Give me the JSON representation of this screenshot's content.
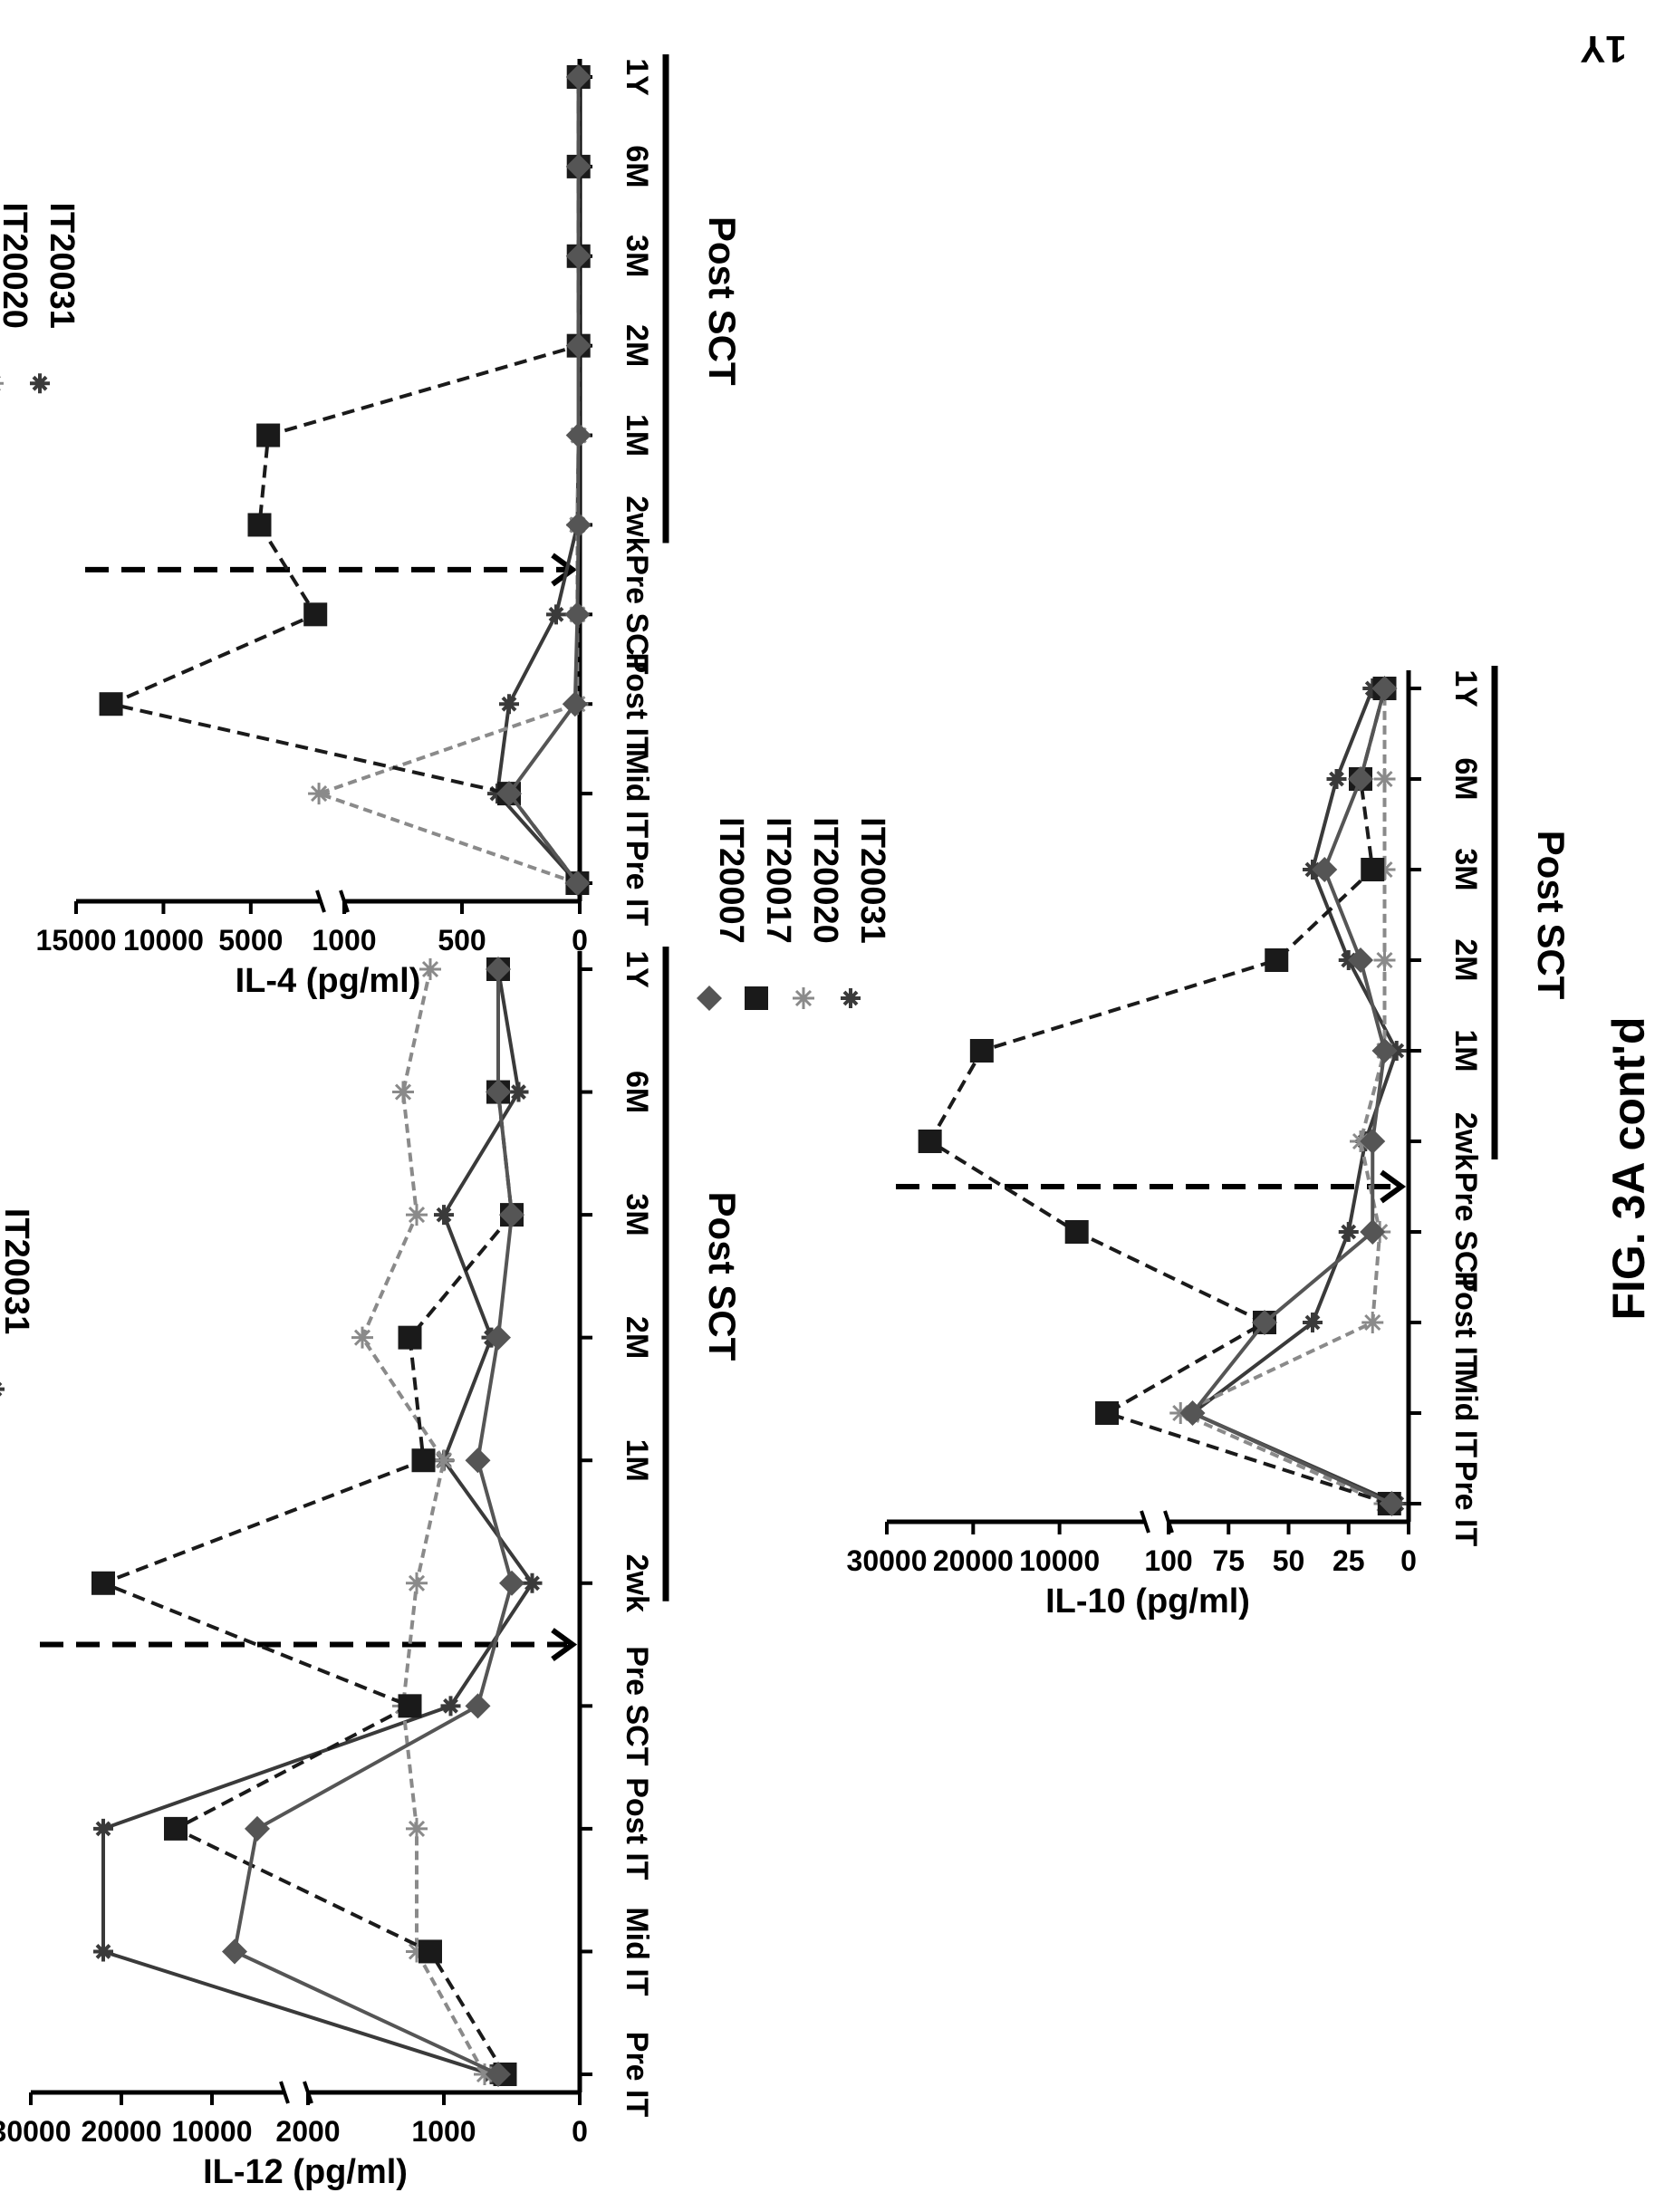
{
  "figure_caption": "FIG. 3A cont'd",
  "stray_label": "1Y",
  "colors": {
    "axis": "#000000",
    "IT20031": "#3a3a3a",
    "IT20020": "#8a8a8a",
    "IT20017": "#1a1a1a",
    "IT20007": "#555555"
  },
  "chart_data": [
    {
      "type": "line",
      "ylabel": "IL-12 (pg/ml)",
      "x_group_label": "Post SCT",
      "categories": [
        "Pre IT",
        "Mid IT",
        "Post IT",
        "Pre SCT",
        "2wk",
        "1M",
        "2M",
        "3M",
        "6M",
        "1Y"
      ],
      "y_lower_ticks": [
        "0",
        "1000",
        "2000"
      ],
      "y_upper_ticks": [
        "10000",
        "20000",
        "30000"
      ],
      "ylim_lower": [
        0,
        2000
      ],
      "ylim_upper": [
        2000,
        30000
      ],
      "y_break": 2000,
      "transplant_marker_between": [
        "Pre SCT",
        "2wk"
      ],
      "series": [
        {
          "name": "IT20031",
          "marker": "cross",
          "values": [
            650,
            22000,
            22000,
            950,
            350,
            1000,
            650,
            1000,
            450,
            600
          ]
        },
        {
          "name": "IT20020",
          "marker": "star",
          "values": [
            700,
            1200,
            1200,
            1300,
            1200,
            1000,
            1600,
            1200,
            1300,
            1100
          ]
        },
        {
          "name": "IT20017",
          "marker": "square",
          "values": [
            550,
            1100,
            14000,
            1250,
            22000,
            1150,
            1250,
            500,
            600,
            600
          ]
        },
        {
          "name": "IT20007",
          "marker": "diamond",
          "values": [
            600,
            7500,
            5000,
            750,
            500,
            750,
            600,
            500,
            600,
            600
          ]
        }
      ]
    },
    {
      "type": "line",
      "ylabel": "IL-4 (pg/ml)",
      "x_group_label": "Post SCT",
      "categories": [
        "Pre IT",
        "Mid IT",
        "Post IT",
        "Pre SCT",
        "2wk",
        "1M",
        "2M",
        "3M",
        "6M",
        "1Y"
      ],
      "y_lower_ticks": [
        "0",
        "500",
        "1000"
      ],
      "y_upper_ticks": [
        "5000",
        "10000",
        "15000"
      ],
      "ylim_lower": [
        0,
        1000
      ],
      "ylim_upper": [
        1000,
        15000
      ],
      "y_break": 1000,
      "transplant_marker_between": [
        "Pre SCT",
        "2wk"
      ],
      "series": [
        {
          "name": "IT20031",
          "marker": "cross",
          "values": [
            10,
            350,
            300,
            100,
            10,
            5,
            5,
            5,
            5,
            5
          ]
        },
        {
          "name": "IT20020",
          "marker": "star",
          "values": [
            10,
            1100,
            10,
            10,
            10,
            5,
            5,
            5,
            5,
            5
          ]
        },
        {
          "name": "IT20017",
          "marker": "square",
          "values": [
            10,
            300,
            13000,
            1300,
            4500,
            4000,
            5,
            5,
            5,
            5
          ]
        },
        {
          "name": "IT20007",
          "marker": "diamond",
          "values": [
            10,
            300,
            20,
            10,
            5,
            5,
            5,
            5,
            5,
            5
          ]
        }
      ]
    },
    {
      "type": "line",
      "ylabel": "IL-10 (pg/ml)",
      "x_group_label": "Post SCT",
      "categories": [
        "Pre IT",
        "Mid IT",
        "Post IT",
        "Pre SCT",
        "2wk",
        "1M",
        "2M",
        "3M",
        "6M",
        "1Y"
      ],
      "y_lower_ticks": [
        "0",
        "25",
        "50",
        "75",
        "100"
      ],
      "y_upper_ticks": [
        "10000",
        "20000",
        "30000"
      ],
      "ylim_lower": [
        0,
        100
      ],
      "ylim_upper": [
        100,
        30000
      ],
      "y_break": 100,
      "transplant_marker_between": [
        "Pre SCT",
        "2wk"
      ],
      "series": [
        {
          "name": "IT20031",
          "marker": "cross",
          "values": [
            5,
            90,
            40,
            25,
            18,
            5,
            25,
            40,
            30,
            15
          ]
        },
        {
          "name": "IT20020",
          "marker": "star",
          "values": [
            10,
            95,
            15,
            12,
            20,
            10,
            10,
            10,
            10,
            10
          ]
        },
        {
          "name": "IT20017",
          "marker": "square",
          "values": [
            8,
            4500,
            60,
            8000,
            25000,
            19000,
            55,
            15,
            20,
            10
          ]
        },
        {
          "name": "IT20007",
          "marker": "diamond",
          "values": [
            7,
            90,
            60,
            15,
            15,
            10,
            20,
            35,
            20,
            10
          ]
        }
      ]
    }
  ]
}
